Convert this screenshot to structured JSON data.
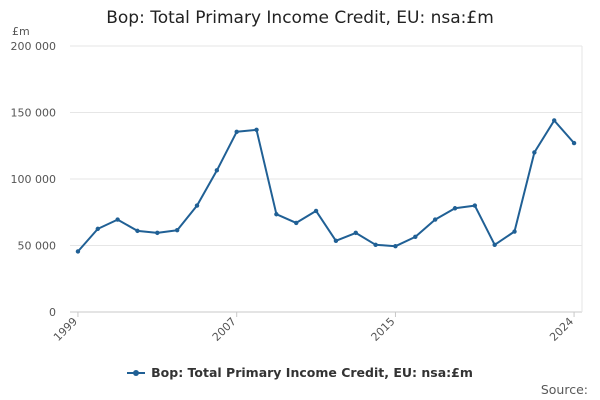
{
  "chart_data": {
    "type": "line",
    "title": "Bop: Total Primary Income Credit, EU: nsa:£m",
    "ylabel": "£m",
    "xlabel": "",
    "x": [
      1999,
      2000,
      2001,
      2002,
      2003,
      2004,
      2005,
      2006,
      2007,
      2008,
      2009,
      2010,
      2011,
      2012,
      2013,
      2014,
      2015,
      2016,
      2017,
      2018,
      2019,
      2020,
      2021,
      2022,
      2023,
      2024
    ],
    "series": [
      {
        "name": "Bop: Total Primary Income Credit, EU: nsa:£m",
        "values": [
          45500,
          62500,
          69500,
          61000,
          59500,
          61500,
          80000,
          106500,
          135500,
          137000,
          73500,
          67000,
          76000,
          53500,
          59500,
          50500,
          49500,
          56500,
          69500,
          78000,
          80000,
          50500,
          60500,
          120000,
          144000,
          127000
        ],
        "color": "#206095"
      }
    ],
    "xticks": [
      "1999",
      "2007",
      "2015",
      "2024"
    ],
    "yticks": [
      "0",
      "50 000",
      "100 000",
      "150 000",
      "200 000"
    ],
    "ylim": [
      0,
      200000
    ],
    "grid": "horizontal",
    "legend_position": "bottom-center"
  },
  "source_label": "Source:"
}
